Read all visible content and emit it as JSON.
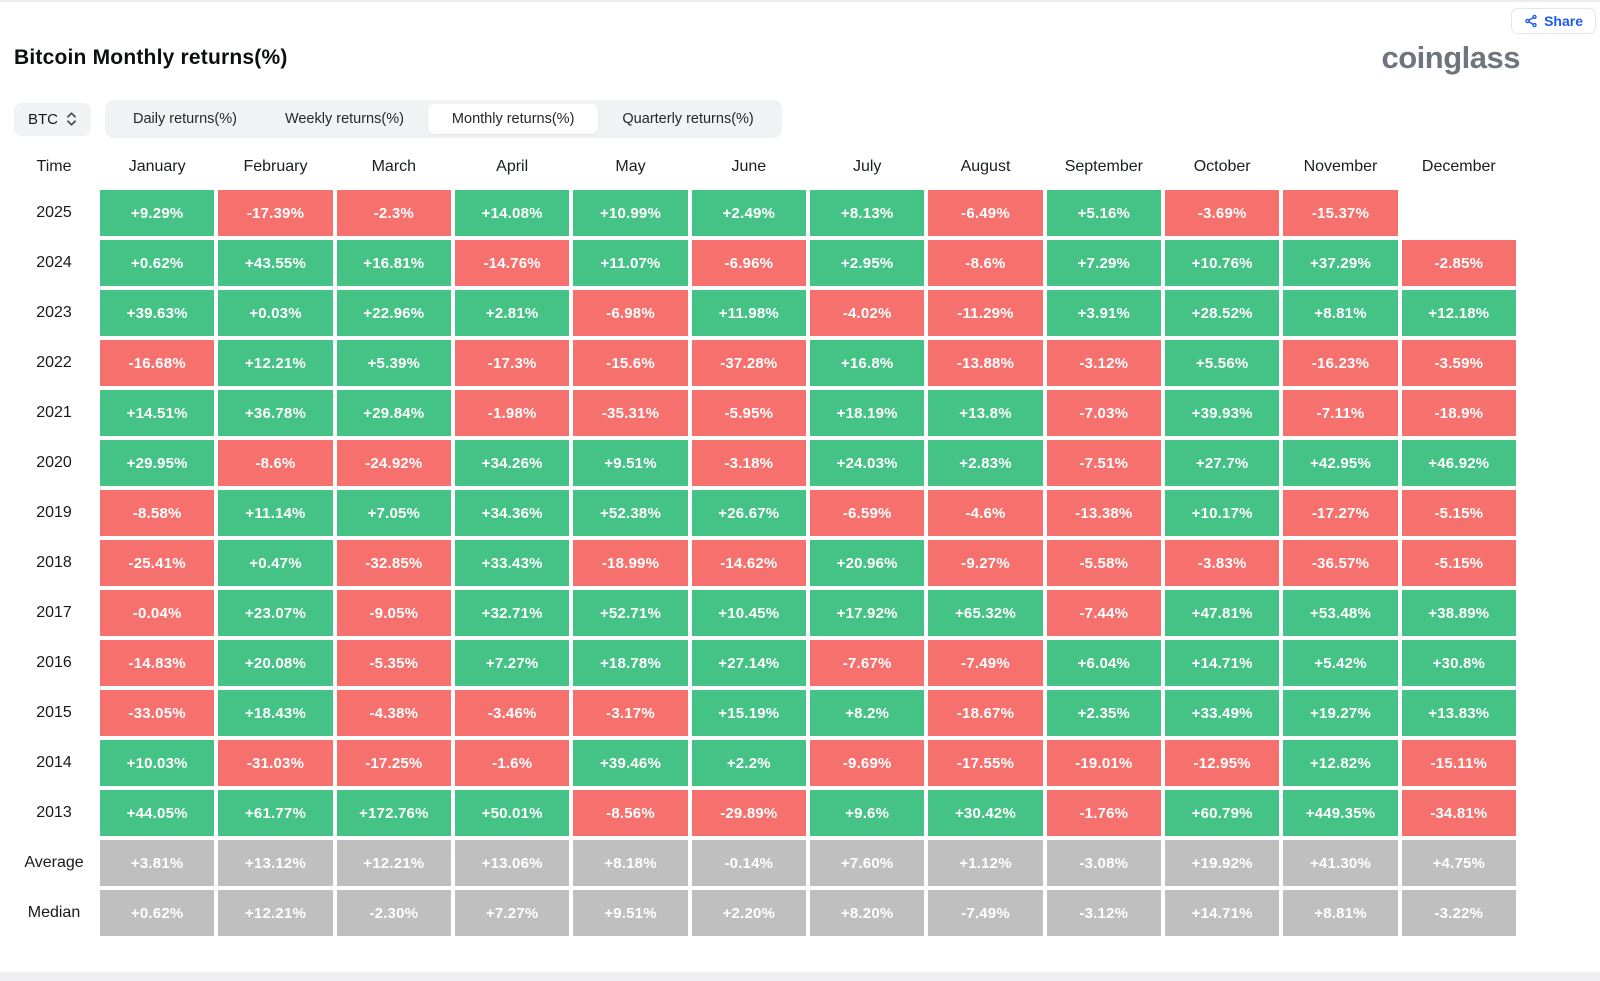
{
  "header": {
    "title": "Bitcoin Monthly returns(%)",
    "logo_text": "coinglass",
    "share_label": "Share"
  },
  "controls": {
    "symbol": "BTC",
    "tabs": [
      "Daily returns(%)",
      "Weekly returns(%)",
      "Monthly returns(%)",
      "Quarterly returns(%)"
    ],
    "active_tab": "Monthly returns(%)"
  },
  "colors": {
    "positive_green": "#45c285",
    "negative_red": "#f6706e",
    "summary_gray": "#bfbfbf",
    "accent_blue": "#1f5af0",
    "logo_gray": "#6e757c"
  },
  "chart_data": {
    "type": "heatmap",
    "title": "Bitcoin Monthly returns(%)",
    "time_label": "Time",
    "columns": [
      "January",
      "February",
      "March",
      "April",
      "May",
      "June",
      "July",
      "August",
      "September",
      "October",
      "November",
      "December"
    ],
    "color_rule": "green = positive, red = negative, gray = summary rows (Average/Median), blank = no data",
    "rows": [
      {
        "label": "2025",
        "summary": false,
        "values": [
          "+9.29%",
          "-17.39%",
          "-2.3%",
          "+14.08%",
          "+10.99%",
          "+2.49%",
          "+8.13%",
          "-6.49%",
          "+5.16%",
          "-3.69%",
          "-15.37%",
          ""
        ]
      },
      {
        "label": "2024",
        "summary": false,
        "values": [
          "+0.62%",
          "+43.55%",
          "+16.81%",
          "-14.76%",
          "+11.07%",
          "-6.96%",
          "+2.95%",
          "-8.6%",
          "+7.29%",
          "+10.76%",
          "+37.29%",
          "-2.85%"
        ]
      },
      {
        "label": "2023",
        "summary": false,
        "values": [
          "+39.63%",
          "+0.03%",
          "+22.96%",
          "+2.81%",
          "-6.98%",
          "+11.98%",
          "-4.02%",
          "-11.29%",
          "+3.91%",
          "+28.52%",
          "+8.81%",
          "+12.18%"
        ]
      },
      {
        "label": "2022",
        "summary": false,
        "values": [
          "-16.68%",
          "+12.21%",
          "+5.39%",
          "-17.3%",
          "-15.6%",
          "-37.28%",
          "+16.8%",
          "-13.88%",
          "-3.12%",
          "+5.56%",
          "-16.23%",
          "-3.59%"
        ]
      },
      {
        "label": "2021",
        "summary": false,
        "values": [
          "+14.51%",
          "+36.78%",
          "+29.84%",
          "-1.98%",
          "-35.31%",
          "-5.95%",
          "+18.19%",
          "+13.8%",
          "-7.03%",
          "+39.93%",
          "-7.11%",
          "-18.9%"
        ]
      },
      {
        "label": "2020",
        "summary": false,
        "values": [
          "+29.95%",
          "-8.6%",
          "-24.92%",
          "+34.26%",
          "+9.51%",
          "-3.18%",
          "+24.03%",
          "+2.83%",
          "-7.51%",
          "+27.7%",
          "+42.95%",
          "+46.92%"
        ]
      },
      {
        "label": "2019",
        "summary": false,
        "values": [
          "-8.58%",
          "+11.14%",
          "+7.05%",
          "+34.36%",
          "+52.38%",
          "+26.67%",
          "-6.59%",
          "-4.6%",
          "-13.38%",
          "+10.17%",
          "-17.27%",
          "-5.15%"
        ]
      },
      {
        "label": "2018",
        "summary": false,
        "values": [
          "-25.41%",
          "+0.47%",
          "-32.85%",
          "+33.43%",
          "-18.99%",
          "-14.62%",
          "+20.96%",
          "-9.27%",
          "-5.58%",
          "-3.83%",
          "-36.57%",
          "-5.15%"
        ]
      },
      {
        "label": "2017",
        "summary": false,
        "values": [
          "-0.04%",
          "+23.07%",
          "-9.05%",
          "+32.71%",
          "+52.71%",
          "+10.45%",
          "+17.92%",
          "+65.32%",
          "-7.44%",
          "+47.81%",
          "+53.48%",
          "+38.89%"
        ]
      },
      {
        "label": "2016",
        "summary": false,
        "values": [
          "-14.83%",
          "+20.08%",
          "-5.35%",
          "+7.27%",
          "+18.78%",
          "+27.14%",
          "-7.67%",
          "-7.49%",
          "+6.04%",
          "+14.71%",
          "+5.42%",
          "+30.8%"
        ]
      },
      {
        "label": "2015",
        "summary": false,
        "values": [
          "-33.05%",
          "+18.43%",
          "-4.38%",
          "-3.46%",
          "-3.17%",
          "+15.19%",
          "+8.2%",
          "-18.67%",
          "+2.35%",
          "+33.49%",
          "+19.27%",
          "+13.83%"
        ]
      },
      {
        "label": "2014",
        "summary": false,
        "values": [
          "+10.03%",
          "-31.03%",
          "-17.25%",
          "-1.6%",
          "+39.46%",
          "+2.2%",
          "-9.69%",
          "-17.55%",
          "-19.01%",
          "-12.95%",
          "+12.82%",
          "-15.11%"
        ]
      },
      {
        "label": "2013",
        "summary": false,
        "values": [
          "+44.05%",
          "+61.77%",
          "+172.76%",
          "+50.01%",
          "-8.56%",
          "-29.89%",
          "+9.6%",
          "+30.42%",
          "-1.76%",
          "+60.79%",
          "+449.35%",
          "-34.81%"
        ]
      },
      {
        "label": "Average",
        "summary": true,
        "values": [
          "+3.81%",
          "+13.12%",
          "+12.21%",
          "+13.06%",
          "+8.18%",
          "-0.14%",
          "+7.60%",
          "+1.12%",
          "-3.08%",
          "+19.92%",
          "+41.30%",
          "+4.75%"
        ]
      },
      {
        "label": "Median",
        "summary": true,
        "values": [
          "+0.62%",
          "+12.21%",
          "-2.30%",
          "+7.27%",
          "+9.51%",
          "+2.20%",
          "+8.20%",
          "-7.49%",
          "-3.12%",
          "+14.71%",
          "+8.81%",
          "-3.22%"
        ]
      }
    ]
  }
}
